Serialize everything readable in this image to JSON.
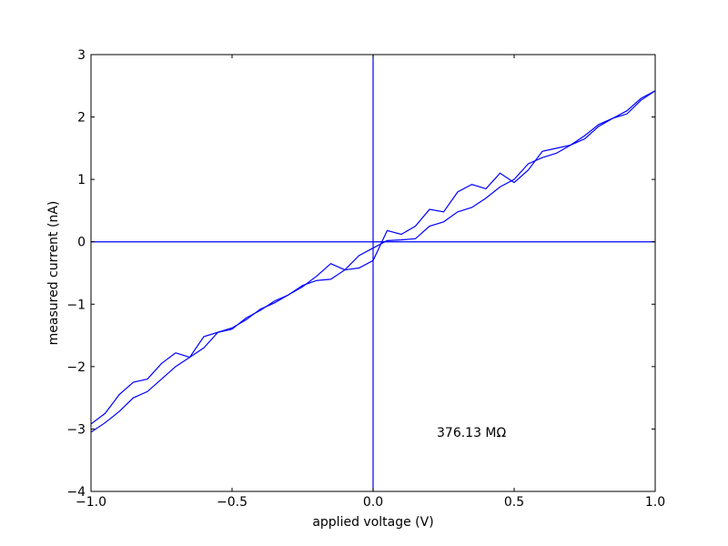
{
  "chart_data": {
    "type": "line",
    "xlabel": "applied voltage (V)",
    "ylabel": "measured current (nA)",
    "annotation": "376.13 MΩ",
    "x": [
      -1,
      -0.95,
      -0.9,
      -0.85,
      -0.8,
      -0.75,
      -0.7,
      -0.65,
      -0.6,
      -0.55,
      -0.5,
      -0.45,
      -0.4,
      -0.35,
      -0.3,
      -0.25,
      -0.2,
      -0.15,
      -0.1,
      -0.05,
      0,
      0.05,
      0.1,
      0.15,
      0.2,
      0.25,
      0.3,
      0.35,
      0.4,
      0.45,
      0.5,
      0.55,
      0.6,
      0.65,
      0.7,
      0.75,
      0.8,
      0.85,
      0.9,
      0.95,
      1
    ],
    "series": [
      {
        "color": "#0000ff",
        "values": [
          -2.92,
          -2.75,
          -2.45,
          -2.25,
          -2.2,
          -1.95,
          -1.78,
          -1.85,
          -1.52,
          -1.45,
          -1.4,
          -1.22,
          -1.1,
          -0.95,
          -0.85,
          -0.72,
          -0.55,
          -0.35,
          -0.45,
          -0.42,
          -0.3,
          0.18,
          0.12,
          0.25,
          0.52,
          0.48,
          0.8,
          0.92,
          0.85,
          1.1,
          0.95,
          1.15,
          1.45,
          1.5,
          1.55,
          1.7,
          1.88,
          1.98,
          2.05,
          2.27,
          2.42
        ]
      },
      {
        "color": "#0000ff",
        "values": [
          -3.05,
          -2.9,
          -2.72,
          -2.5,
          -2.4,
          -2.2,
          -2.0,
          -1.85,
          -1.7,
          -1.45,
          -1.38,
          -1.25,
          -1.08,
          -0.98,
          -0.85,
          -0.7,
          -0.62,
          -0.6,
          -0.45,
          -0.22,
          -0.1,
          0.02,
          0.03,
          0.05,
          0.25,
          0.32,
          0.48,
          0.55,
          0.7,
          0.88,
          1.0,
          1.25,
          1.35,
          1.42,
          1.55,
          1.65,
          1.85,
          1.98,
          2.1,
          2.3,
          2.42
        ]
      }
    ],
    "xlim": [
      -1,
      1
    ],
    "ylim": [
      -4,
      3
    ],
    "xticks": [
      {
        "value": -1,
        "label": "−1.0"
      },
      {
        "value": -0.5,
        "label": "−0.5"
      },
      {
        "value": 0,
        "label": "0.0"
      },
      {
        "value": 0.5,
        "label": "0.5"
      },
      {
        "value": 1,
        "label": "1.0"
      }
    ],
    "yticks": [
      {
        "value": -4,
        "label": "−4"
      },
      {
        "value": -3,
        "label": "−3"
      },
      {
        "value": -2,
        "label": "−2"
      },
      {
        "value": -1,
        "label": "−1"
      },
      0,
      1,
      2,
      3
    ],
    "hlines": [
      0
    ],
    "vlines": [
      0
    ],
    "line_color": "#0000ff"
  }
}
